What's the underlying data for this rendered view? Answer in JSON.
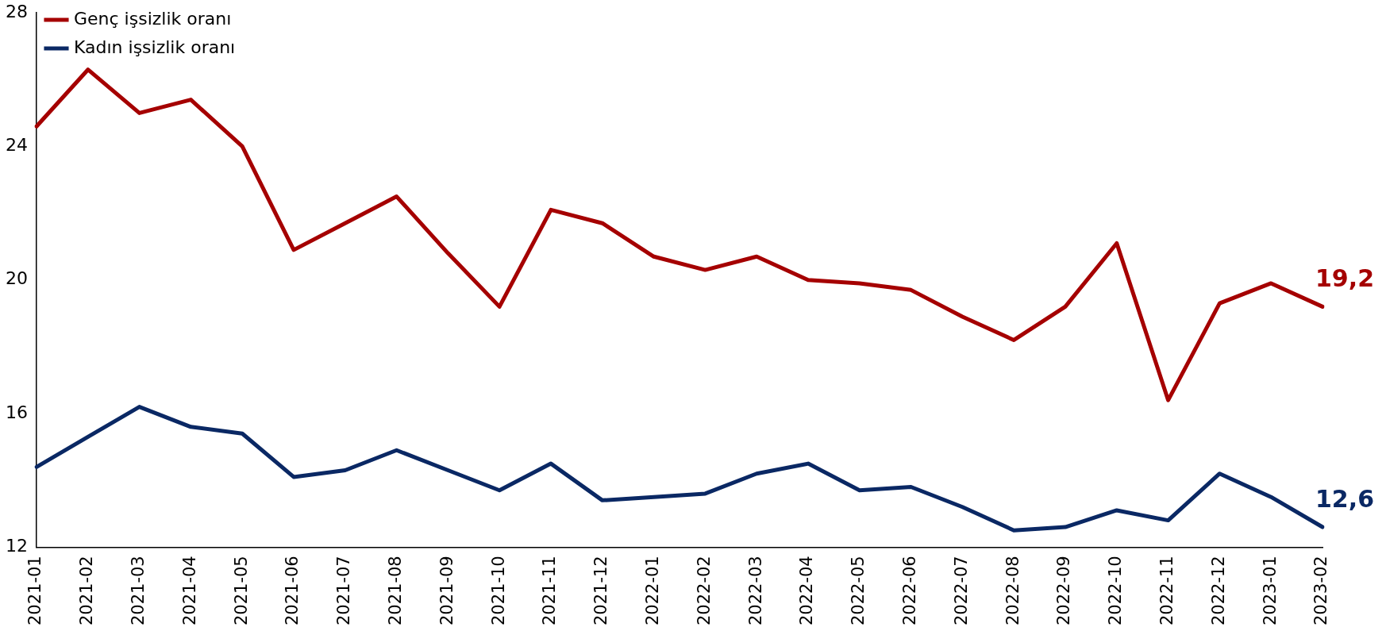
{
  "chart_data": {
    "type": "line",
    "categories": [
      "2021-01",
      "2021-02",
      "2021-03",
      "2021-04",
      "2021-05",
      "2021-06",
      "2021-07",
      "2021-08",
      "2021-09",
      "2021-10",
      "2021-11",
      "2021-12",
      "2022-01",
      "2022-02",
      "2022-03",
      "2022-04",
      "2022-05",
      "2022-06",
      "2022-07",
      "2022-08",
      "2022-09",
      "2022-10",
      "2022-11",
      "2022-12",
      "2023-01",
      "2023-02"
    ],
    "series": [
      {
        "name": "Genç işsizlik oranı",
        "color": "#a50000",
        "values": [
          24.6,
          26.3,
          25.0,
          25.4,
          24.0,
          20.9,
          21.7,
          22.5,
          20.8,
          19.2,
          22.1,
          21.7,
          20.7,
          20.3,
          20.7,
          20.0,
          19.9,
          19.7,
          18.9,
          18.2,
          19.2,
          21.1,
          16.4,
          19.3,
          19.9,
          19.2
        ],
        "value_labels": [
          null,
          null,
          null,
          null,
          null,
          null,
          null,
          null,
          null,
          null,
          null,
          null,
          null,
          null,
          null,
          null,
          null,
          null,
          null,
          null,
          null,
          null,
          null,
          null,
          null,
          "19,2"
        ]
      },
      {
        "name": "Kadın işsizlik oranı",
        "color": "#0a2864",
        "values": [
          14.4,
          15.3,
          16.2,
          15.6,
          15.4,
          14.1,
          14.3,
          14.9,
          14.3,
          13.7,
          14.5,
          13.4,
          13.5,
          13.6,
          14.2,
          14.5,
          13.7,
          13.8,
          13.2,
          12.5,
          12.6,
          13.1,
          12.8,
          14.2,
          13.5,
          12.6
        ],
        "value_labels": [
          null,
          null,
          null,
          null,
          null,
          null,
          null,
          null,
          null,
          null,
          null,
          null,
          null,
          null,
          null,
          null,
          null,
          null,
          null,
          null,
          null,
          null,
          null,
          null,
          null,
          "12,6"
        ]
      }
    ],
    "ylim": [
      12,
      28
    ],
    "yticks": [
      12,
      16,
      20,
      24,
      28
    ],
    "grid": false,
    "legend": "top left",
    "marker": "none",
    "line_style": "solid"
  }
}
